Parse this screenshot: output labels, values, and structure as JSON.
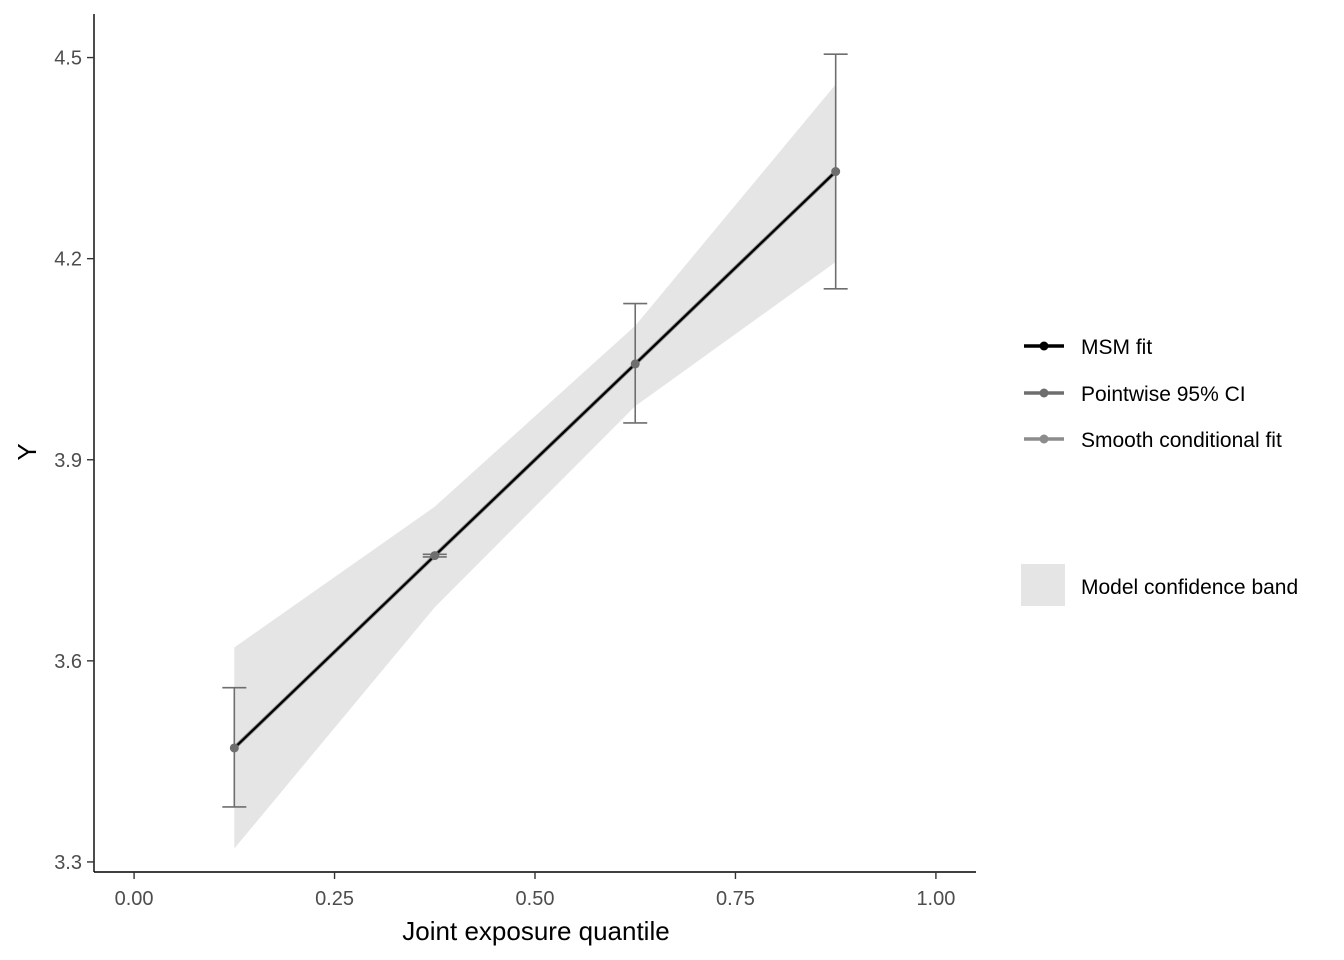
{
  "chart_data": {
    "type": "line",
    "title": "",
    "xlabel": "Joint exposure quantile",
    "ylabel": "Y",
    "xlim": [
      -0.05,
      1.05
    ],
    "ylim": [
      3.285,
      4.565
    ],
    "xticks": [
      0.0,
      0.25,
      0.5,
      0.75,
      1.0
    ],
    "xtick_labels": [
      "0.00",
      "0.25",
      "0.50",
      "0.75",
      "1.00"
    ],
    "yticks": [
      3.3,
      3.6,
      3.9,
      4.2,
      4.5
    ],
    "ytick_labels": [
      "3.3",
      "3.6",
      "3.9",
      "4.2",
      "4.5"
    ],
    "grid": false,
    "legend_position": "right",
    "series": [
      {
        "name": "MSM fit",
        "kind": "line",
        "color": "#000000",
        "x": [
          0.125,
          0.375,
          0.625,
          0.875
        ],
        "y": [
          3.47,
          3.757,
          4.043,
          4.33
        ]
      },
      {
        "name": "Pointwise 95% CI",
        "kind": "errorbar",
        "color": "#6e6e6e",
        "x": [
          0.125,
          0.375,
          0.625,
          0.875
        ],
        "y": [
          3.47,
          3.757,
          4.043,
          4.33
        ],
        "lower": [
          3.382,
          3.755,
          3.955,
          4.155
        ],
        "upper": [
          3.56,
          3.759,
          4.133,
          4.505
        ]
      },
      {
        "name": "Smooth conditional fit",
        "kind": "line",
        "color": "#8c8c8c",
        "x": [
          0.125,
          0.375,
          0.625,
          0.875
        ],
        "y": [
          3.47,
          3.757,
          4.043,
          4.33
        ]
      }
    ],
    "band": {
      "name": "Model confidence band",
      "color": "#e5e5e5",
      "x": [
        0.125,
        0.375,
        0.625,
        0.875
      ],
      "lower": [
        3.32,
        3.68,
        3.98,
        4.195
      ],
      "upper": [
        3.62,
        3.83,
        4.1,
        4.46
      ]
    }
  }
}
